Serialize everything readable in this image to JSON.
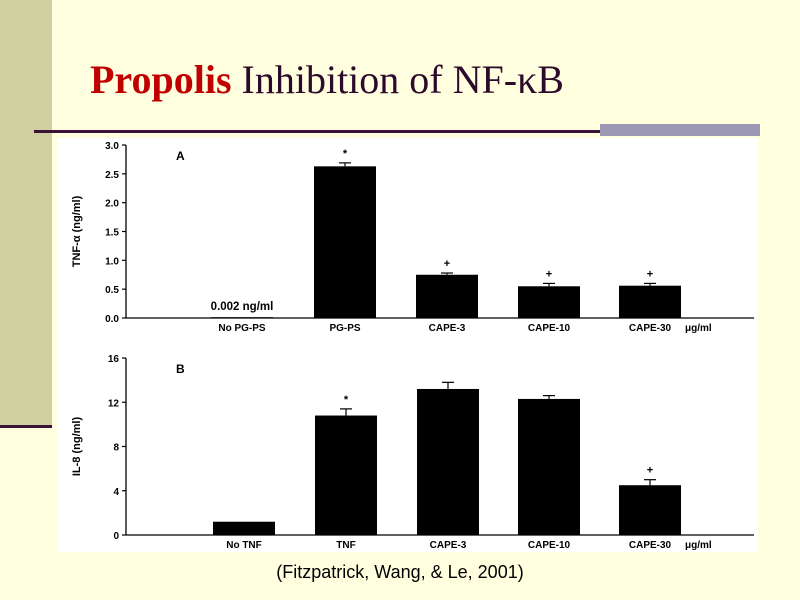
{
  "slide": {
    "title_accent": "Propolis",
    "title_rest": " Inhibition of NF-κB",
    "citation": "(Fitzpatrick, Wang, & Le, 2001)"
  },
  "colors": {
    "title_accent": "#c00000",
    "title_text": "#2b0a2b",
    "background": "#ffffe0",
    "bars": "#000000"
  },
  "chart_data": [
    {
      "type": "bar",
      "panel_label": "A",
      "ylabel": "TNF-α (ng/ml)",
      "ylim": [
        0,
        3.0
      ],
      "yticks": [
        "0.0",
        "0.5",
        "1.0",
        "1.5",
        "2.0",
        "2.5",
        "3.0"
      ],
      "categories": [
        "No PG-PS",
        "PG-PS",
        "CAPE-3",
        "CAPE-10",
        "CAPE-30"
      ],
      "unit_label": "μg/ml",
      "values": [
        0.002,
        2.63,
        0.75,
        0.55,
        0.56
      ],
      "errors": [
        0,
        0.06,
        0.03,
        0.05,
        0.04
      ],
      "markers": [
        "",
        "*",
        "+",
        "+",
        "+"
      ],
      "annotation": "0.002 ng/ml"
    },
    {
      "type": "bar",
      "panel_label": "B",
      "ylabel": "IL-8 (ng/ml)",
      "ylim": [
        0,
        16
      ],
      "yticks": [
        "0",
        "4",
        "8",
        "12",
        "16"
      ],
      "categories": [
        "No TNF",
        "TNF",
        "CAPE-3",
        "CAPE-10",
        "CAPE-30"
      ],
      "unit_label": "μg/ml",
      "values": [
        1.2,
        10.8,
        13.2,
        12.3,
        4.5
      ],
      "errors": [
        0,
        0.6,
        0.6,
        0.3,
        0.5
      ],
      "markers": [
        "",
        "*",
        "",
        "",
        "+"
      ],
      "annotation": ""
    }
  ]
}
